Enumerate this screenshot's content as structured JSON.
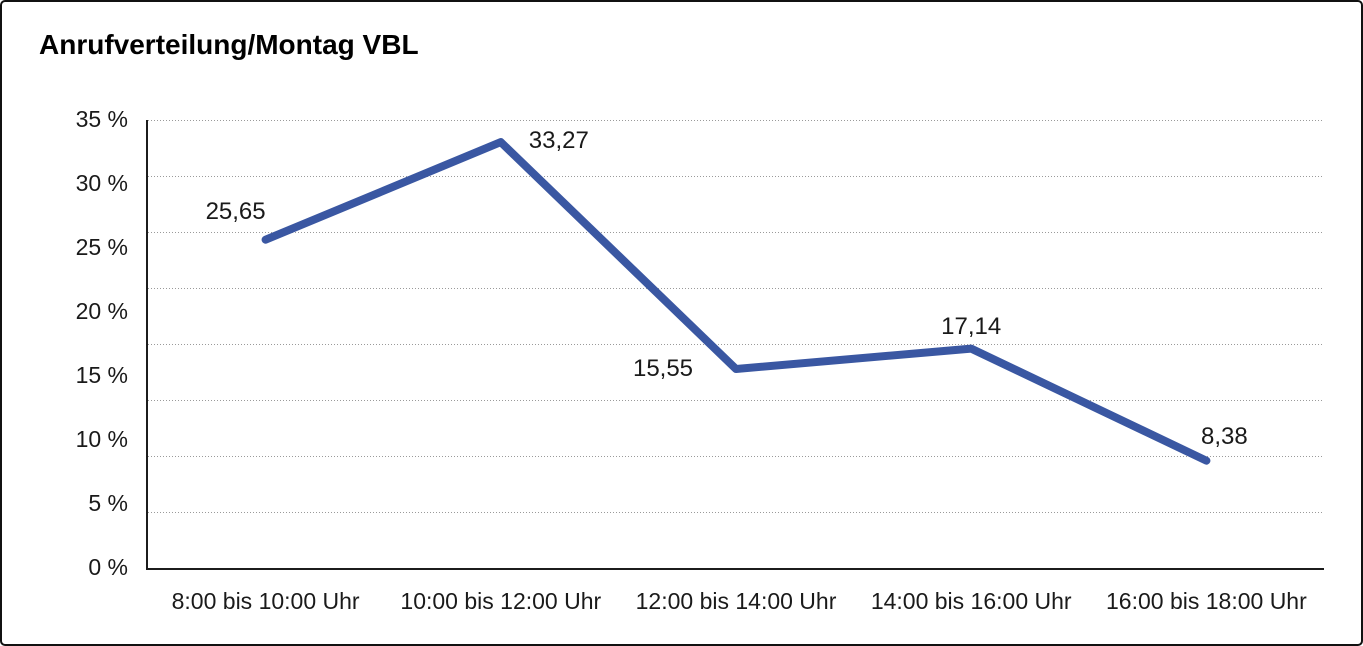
{
  "window": {
    "background": "#ffffff",
    "frame_border_color": "#111111"
  },
  "chart_data": {
    "type": "line",
    "title": "Anrufverteilung/Montag VBL",
    "categories": [
      "8:00 bis 10:00 Uhr",
      "10:00 bis 12:00 Uhr",
      "12:00 bis 14:00 Uhr",
      "14:00 bis 16:00 Uhr",
      "16:00 bis 18:00 Uhr"
    ],
    "values": [
      25.65,
      33.27,
      15.55,
      17.14,
      8.38
    ],
    "value_labels": [
      "25,65",
      "33,27",
      "15,55",
      "17,14",
      "8,38"
    ],
    "y_axis": {
      "min": 0,
      "max": 35,
      "ticks": [
        {
          "value": 35,
          "label": "35 %"
        },
        {
          "value": 30,
          "label": "30 %"
        },
        {
          "value": 25,
          "label": "25 %"
        },
        {
          "value": 20,
          "label": "20 %"
        },
        {
          "value": 15,
          "label": "15 %"
        },
        {
          "value": 10,
          "label": "10 %"
        },
        {
          "value": 5,
          "label": "5 %"
        },
        {
          "value": 0,
          "label": "0 %"
        }
      ]
    },
    "xlabel": "",
    "ylabel": "",
    "legend": "none",
    "grid": {
      "orientation": "horizontal",
      "style": "dotted",
      "divisions": 8,
      "color": "#9a9a9a"
    },
    "line_color": "#3a57a2",
    "line_width": 8,
    "text_color": "#1a1a1a",
    "axis_color": "#1c1c1c"
  }
}
